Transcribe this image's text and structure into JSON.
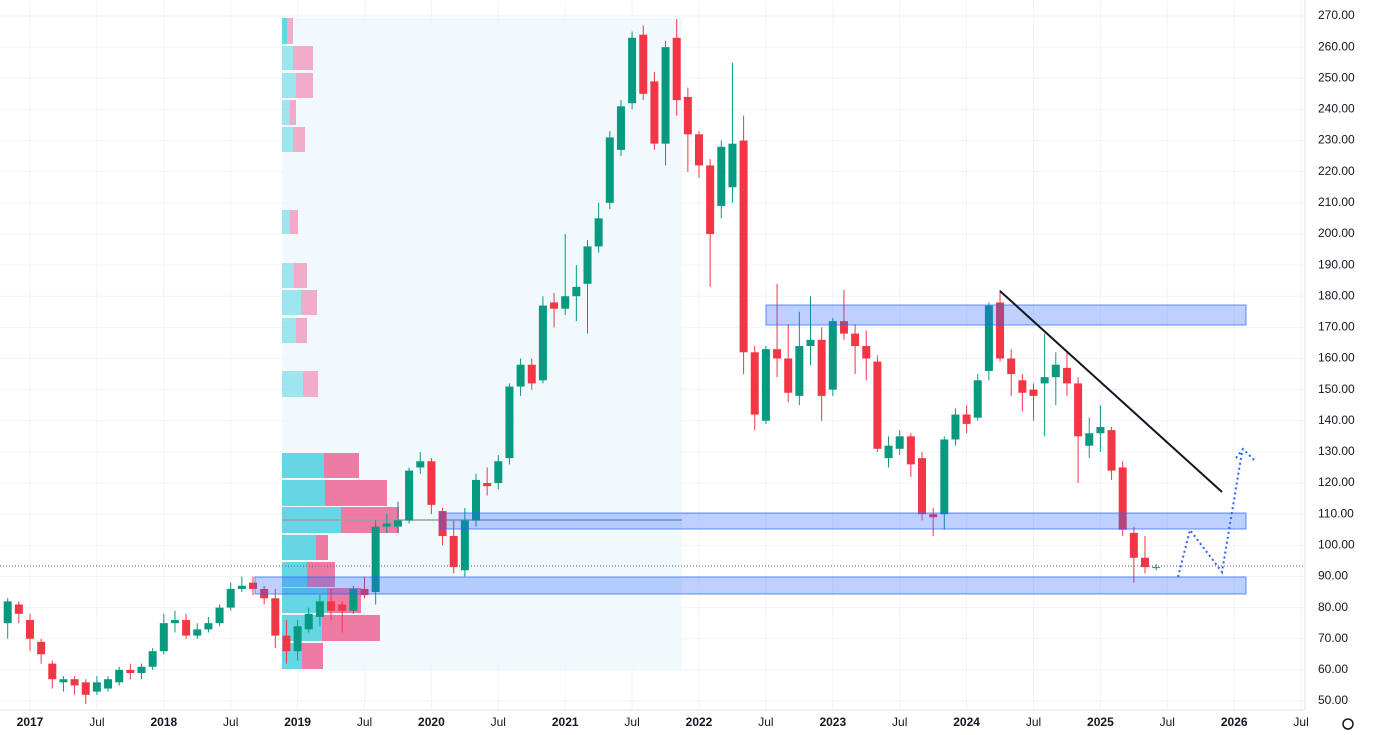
{
  "chart_data": {
    "type": "candlestick",
    "x": [
      "2016-11",
      "2016-12",
      "2017-01",
      "2017-02",
      "2017-03",
      "2017-04",
      "2017-05",
      "2017-06",
      "2017-07",
      "2017-08",
      "2017-09",
      "2017-10",
      "2017-11",
      "2017-12",
      "2018-01",
      "2018-02",
      "2018-03",
      "2018-04",
      "2018-05",
      "2018-06",
      "2018-07",
      "2018-08",
      "2018-09",
      "2018-10",
      "2018-11",
      "2018-12",
      "2019-01",
      "2019-02",
      "2019-03",
      "2019-04",
      "2019-05",
      "2019-06",
      "2019-07",
      "2019-08",
      "2019-09",
      "2019-10",
      "2019-11",
      "2019-12",
      "2020-01",
      "2020-02",
      "2020-03",
      "2020-04",
      "2020-05",
      "2020-06",
      "2020-07",
      "2020-08",
      "2020-09",
      "2020-10",
      "2020-11",
      "2020-12",
      "2021-01",
      "2021-02",
      "2021-03",
      "2021-04",
      "2021-05",
      "2021-06",
      "2021-07",
      "2021-08",
      "2021-09",
      "2021-10",
      "2021-11",
      "2021-12",
      "2022-01",
      "2022-02",
      "2022-03",
      "2022-04",
      "2022-05",
      "2022-06",
      "2022-07",
      "2022-08",
      "2022-09",
      "2022-10",
      "2022-11",
      "2022-12",
      "2023-01",
      "2023-02",
      "2023-03",
      "2023-04",
      "2023-05",
      "2023-06",
      "2023-07",
      "2023-08",
      "2023-09",
      "2023-10",
      "2023-11",
      "2023-12",
      "2024-01",
      "2024-02",
      "2024-03",
      "2024-04",
      "2024-05",
      "2024-06",
      "2024-07",
      "2024-08",
      "2024-09",
      "2024-10",
      "2024-11",
      "2024-12",
      "2025-01",
      "2025-02",
      "2025-03",
      "2025-04",
      "2025-05",
      "2025-06"
    ],
    "open": [
      75,
      81,
      76,
      69,
      62,
      56,
      57,
      56,
      53,
      54,
      56,
      60,
      59,
      61,
      66,
      75,
      76,
      71,
      73,
      75,
      80,
      86,
      88,
      86,
      83,
      71,
      66,
      73,
      77,
      82,
      81,
      79,
      86,
      85,
      106,
      106,
      108,
      125,
      127,
      111,
      103,
      92,
      108,
      120,
      120,
      128,
      151,
      158,
      153,
      178,
      176,
      180,
      184,
      196,
      210,
      227,
      242,
      264,
      249,
      229,
      263,
      244,
      232,
      222,
      209,
      215,
      230,
      162,
      140,
      163,
      160,
      148,
      164,
      166,
      150,
      172,
      168,
      164,
      159,
      128,
      131,
      135,
      128,
      110,
      110,
      134,
      142,
      141,
      156,
      178,
      160,
      153,
      150,
      152,
      154,
      157,
      152,
      132,
      136,
      137,
      125,
      104,
      96,
      93
    ],
    "high": [
      83,
      82,
      78,
      70,
      63,
      58,
      58,
      57,
      58,
      58,
      61,
      62,
      62,
      67,
      78,
      79,
      78,
      75,
      77,
      81,
      88,
      90,
      90,
      87,
      86,
      76,
      76,
      80,
      84,
      86,
      82,
      87,
      90,
      108,
      110,
      114,
      125,
      130,
      128,
      112,
      108,
      112,
      123,
      125,
      129,
      152,
      160,
      160,
      180,
      181,
      200,
      190,
      198,
      210,
      233,
      243,
      265,
      267,
      252,
      262,
      269,
      247,
      233,
      224,
      230,
      255,
      238,
      164,
      164,
      184,
      171,
      175,
      180,
      170,
      173,
      182,
      171,
      169,
      161,
      135,
      137,
      136,
      130,
      112,
      135,
      144,
      145,
      155,
      178,
      182,
      163,
      155,
      152,
      168,
      162,
      162,
      154,
      141,
      145,
      138,
      127,
      106,
      103,
      94
    ],
    "low": [
      70,
      75,
      66,
      62,
      54,
      53,
      52,
      49,
      52,
      53,
      55,
      57,
      57,
      60,
      65,
      72,
      70,
      70,
      72,
      74,
      79,
      85,
      84,
      81,
      67,
      62,
      63,
      72,
      74,
      76,
      72,
      78,
      83,
      81,
      104,
      104,
      107,
      123,
      110,
      100,
      91,
      90,
      106,
      116,
      118,
      126,
      148,
      150,
      152,
      170,
      174,
      172,
      168,
      194,
      208,
      225,
      240,
      243,
      227,
      222,
      238,
      220,
      218,
      183,
      205,
      210,
      155,
      137,
      139,
      154,
      146,
      145,
      158,
      140,
      148,
      166,
      155,
      153,
      130,
      125,
      129,
      122,
      108,
      103,
      105,
      132,
      136,
      140,
      153,
      159,
      148,
      143,
      140,
      135,
      145,
      148,
      120,
      128,
      130,
      121,
      103,
      88,
      91,
      92
    ],
    "close": [
      82,
      78,
      70,
      65,
      57,
      57,
      55,
      52,
      56,
      57,
      60,
      59,
      61,
      66,
      75,
      76,
      71,
      73,
      75,
      80,
      86,
      87,
      86,
      83,
      71,
      66,
      74,
      78,
      82,
      79,
      79,
      86,
      84,
      106,
      107,
      108,
      124,
      127,
      113,
      103,
      93,
      108,
      121,
      119,
      127,
      151,
      158,
      152,
      177,
      176,
      180,
      183,
      196,
      205,
      231,
      241,
      263,
      245,
      229,
      260,
      243,
      232,
      222,
      200,
      228,
      229,
      162,
      142,
      163,
      160,
      149,
      164,
      166,
      148,
      172,
      168,
      164,
      160,
      131,
      132,
      135,
      126,
      110,
      109,
      134,
      142,
      139,
      153,
      177,
      160,
      155,
      149,
      148,
      154,
      158,
      152,
      135,
      136,
      138,
      124,
      105,
      96,
      93,
      93
    ],
    "up_color": "#089981",
    "down_color": "#f23645",
    "ylim": [
      47,
      273
    ],
    "yticks": [
      {
        "value": 50,
        "label": "50.00"
      },
      {
        "value": 60,
        "label": "60.00"
      },
      {
        "value": 70,
        "label": "70.00"
      },
      {
        "value": 80,
        "label": "80.00"
      },
      {
        "value": 90,
        "label": "90.00"
      },
      {
        "value": 100,
        "label": "100.00"
      },
      {
        "value": 110,
        "label": "110.00"
      },
      {
        "value": 120,
        "label": "120.00"
      },
      {
        "value": 130,
        "label": "130.00"
      },
      {
        "value": 140,
        "label": "140.00"
      },
      {
        "value": 150,
        "label": "150.00"
      },
      {
        "value": 160,
        "label": "160.00"
      },
      {
        "value": 170,
        "label": "170.00"
      },
      {
        "value": 180,
        "label": "180.00"
      },
      {
        "value": 190,
        "label": "190.00"
      },
      {
        "value": 200,
        "label": "200.00"
      },
      {
        "value": 210,
        "label": "210.00"
      },
      {
        "value": 220,
        "label": "220.00"
      },
      {
        "value": 230,
        "label": "230.00"
      },
      {
        "value": 240,
        "label": "240.00"
      },
      {
        "value": 250,
        "label": "250.00"
      },
      {
        "value": 260,
        "label": "260.00"
      },
      {
        "value": 270,
        "label": "270.00"
      }
    ],
    "xticks": [
      {
        "value": "2017-01",
        "label": "2017"
      },
      {
        "value": "2017-07",
        "label": "Jul"
      },
      {
        "value": "2018-01",
        "label": "2018"
      },
      {
        "value": "2018-07",
        "label": "Jul"
      },
      {
        "value": "2019-01",
        "label": "2019"
      },
      {
        "value": "2019-07",
        "label": "Jul"
      },
      {
        "value": "2020-01",
        "label": "2020"
      },
      {
        "value": "2020-07",
        "label": "Jul"
      },
      {
        "value": "2021-01",
        "label": "2021"
      },
      {
        "value": "2021-07",
        "label": "Jul"
      },
      {
        "value": "2022-01",
        "label": "2022"
      },
      {
        "value": "2022-07",
        "label": "Jul"
      },
      {
        "value": "2023-01",
        "label": "2023"
      },
      {
        "value": "2023-07",
        "label": "Jul"
      },
      {
        "value": "2024-01",
        "label": "2024"
      },
      {
        "value": "2024-07",
        "label": "Jul"
      },
      {
        "value": "2025-01",
        "label": "2025"
      },
      {
        "value": "2025-07",
        "label": "Jul"
      },
      {
        "value": "2026-01",
        "label": "2026"
      },
      {
        "value": "2026-07",
        "label": "Jul"
      }
    ],
    "grid": true
  }
}
